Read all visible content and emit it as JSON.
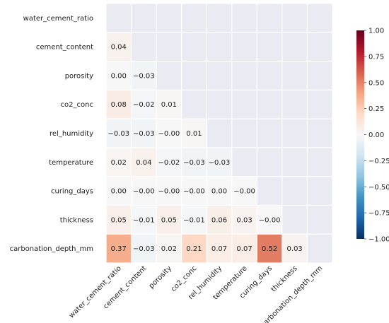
{
  "chart_data": {
    "type": "heatmap",
    "title": "",
    "layout": "lower-triangle",
    "variables": [
      "water_cement_ratio",
      "cement_content",
      "porosity",
      "co2_conc",
      "rel_humidity",
      "temperature",
      "curing_days",
      "thickness",
      "carbonation_depth_mm"
    ],
    "values": [
      [
        null,
        null,
        null,
        null,
        null,
        null,
        null,
        null,
        null
      ],
      [
        0.04,
        null,
        null,
        null,
        null,
        null,
        null,
        null,
        null
      ],
      [
        0.0,
        -0.03,
        null,
        null,
        null,
        null,
        null,
        null,
        null
      ],
      [
        0.08,
        -0.02,
        0.01,
        null,
        null,
        null,
        null,
        null,
        null
      ],
      [
        -0.03,
        -0.03,
        -0.0,
        0.01,
        null,
        null,
        null,
        null,
        null
      ],
      [
        0.02,
        0.04,
        -0.02,
        -0.03,
        -0.03,
        null,
        null,
        null,
        null
      ],
      [
        0.0,
        -0.0,
        -0.0,
        -0.0,
        0.0,
        -0.0,
        null,
        null,
        null
      ],
      [
        0.05,
        -0.01,
        0.05,
        -0.01,
        0.06,
        0.03,
        -0.0,
        null,
        null
      ],
      [
        0.37,
        -0.03,
        0.02,
        0.21,
        0.07,
        0.07,
        0.52,
        0.03,
        null
      ]
    ],
    "labels": [
      [
        null,
        null,
        null,
        null,
        null,
        null,
        null,
        null,
        null
      ],
      [
        "0.04",
        null,
        null,
        null,
        null,
        null,
        null,
        null,
        null
      ],
      [
        "0.00",
        "−0.03",
        null,
        null,
        null,
        null,
        null,
        null,
        null
      ],
      [
        "0.08",
        "−0.02",
        "0.01",
        null,
        null,
        null,
        null,
        null,
        null
      ],
      [
        "−0.03",
        "−0.03",
        "−0.00",
        "0.01",
        null,
        null,
        null,
        null,
        null
      ],
      [
        "0.02",
        "0.04",
        "−0.02",
        "−0.03",
        "−0.03",
        null,
        null,
        null,
        null
      ],
      [
        "0.00",
        "−0.00",
        "−0.00",
        "−0.00",
        "0.00",
        "−0.00",
        null,
        null,
        null
      ],
      [
        "0.05",
        "−0.01",
        "0.05",
        "−0.01",
        "0.06",
        "0.03",
        "−0.00",
        null,
        null
      ],
      [
        "0.37",
        "−0.03",
        "0.02",
        "0.21",
        "0.07",
        "0.07",
        "0.52",
        "0.03",
        null
      ]
    ],
    "colorbar": {
      "range": [
        -1,
        1
      ],
      "ticks": [
        1.0,
        0.75,
        0.5,
        0.25,
        0.0,
        -0.25,
        -0.5,
        -0.75,
        -1.0
      ],
      "tick_labels": [
        "1.00",
        "0.75",
        "0.50",
        "0.25",
        "0.00",
        "−0.25",
        "−0.50",
        "−0.75",
        "−1.00"
      ],
      "colormap": "RdBu_r",
      "stops": [
        "#053061",
        "#2166ac",
        "#4393c3",
        "#92c5de",
        "#d1e5f0",
        "#f7f7f7",
        "#fddbc7",
        "#f4a582",
        "#d6604d",
        "#b2182b",
        "#67001f"
      ]
    },
    "masked_color": "#eaeaf2",
    "grid_color": "#ffffff"
  }
}
